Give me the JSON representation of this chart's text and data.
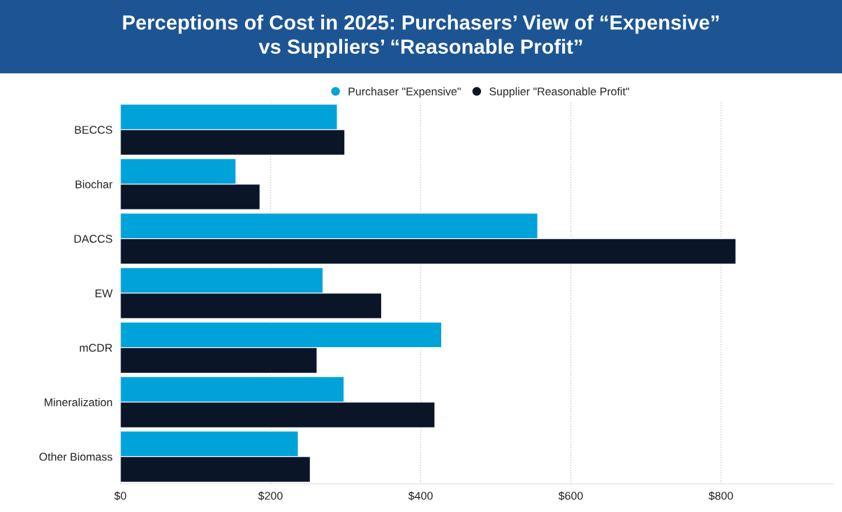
{
  "chart_data": {
    "type": "bar",
    "orientation": "horizontal",
    "title": "Perceptions of Cost in 2025: Purchasers’ View of “Expensive”\nvs Suppliers’ “Reasonable Profit”",
    "categories": [
      "BECCS",
      "Biochar",
      "DACCS",
      "EW",
      "mCDR",
      "Mineralization",
      "Other Biomass"
    ],
    "series": [
      {
        "name": "Purchaser \"Expensive\"",
        "color": "#00a3d9",
        "values": [
          289,
          154,
          556,
          270,
          428,
          298,
          237
        ]
      },
      {
        "name": "Supplier \"Reasonable Profit\"",
        "color": "#0a1628",
        "values": [
          299,
          186,
          820,
          348,
          262,
          419,
          253
        ]
      }
    ],
    "xlim": [
      0,
      950
    ],
    "xticks": [
      {
        "value": 0,
        "label": "$0"
      },
      {
        "value": 200,
        "label": "$200"
      },
      {
        "value": 400,
        "label": "$400"
      },
      {
        "value": 600,
        "label": "$600"
      },
      {
        "value": 800,
        "label": "$800"
      }
    ],
    "grid": "x",
    "legend": "top",
    "marker": "circle"
  }
}
